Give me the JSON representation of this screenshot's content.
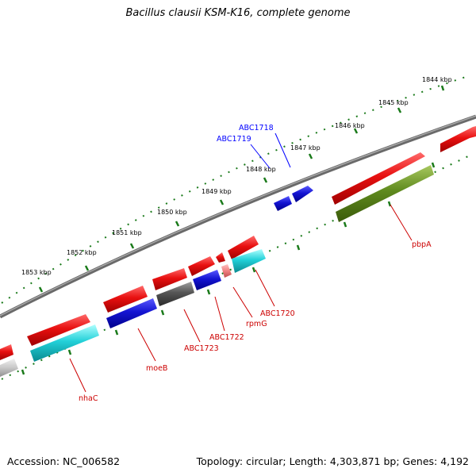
{
  "title": "Bacillus clausii KSM-K16, complete genome",
  "footer": {
    "accession": "Accession: NC_006582",
    "summary": "Topology: circular; Length: 4,303,871 bp; Genes: 4,192"
  },
  "ruler_labels": [
    "1844 kbp",
    "1845 kbp",
    "1846 kbp",
    "1847 kbp",
    "1848 kbp",
    "1849 kbp",
    "1850 kbp",
    "1851 kbp",
    "1852 kbp",
    "1853 kbp"
  ],
  "gene_labels": [
    "ABC1718",
    "ABC1719",
    "pbpA",
    "ABC1720",
    "rpmG",
    "ABC1722",
    "ABC1723",
    "moeB",
    "nhaC"
  ],
  "colors": {
    "backbone": "#808080",
    "forward_cds": "#e81010",
    "reverse_cds": "#1414d2",
    "cyan": "#22d0d8",
    "olive": "#5f8a1e",
    "gray_gene": "#555555",
    "pink": "#f08080",
    "light_gray": "#c8c8c8",
    "ticks": "#1a7a1a",
    "blue_label": "#0000ff",
    "red_label": "#cc0000"
  }
}
